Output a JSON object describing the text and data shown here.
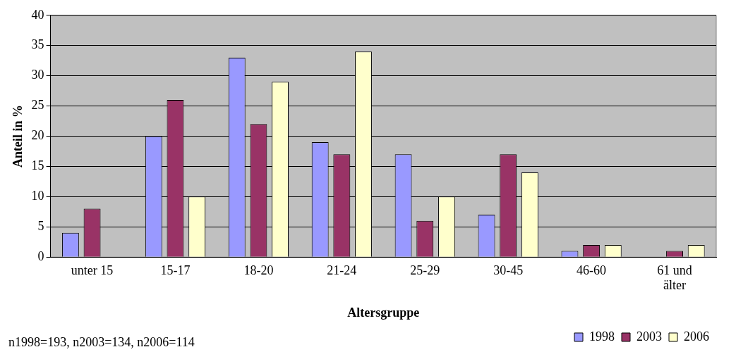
{
  "chart_data": {
    "type": "bar",
    "xlabel": "Altersgruppe",
    "ylabel": "Anteil in %",
    "categories": [
      "unter 15",
      "15-17",
      "18-20",
      "21-24",
      "25-29",
      "30-45",
      "46-60",
      "61 und älter"
    ],
    "series": [
      {
        "name": "1998",
        "color": "#9999ff",
        "values": [
          4,
          20,
          33,
          19,
          17,
          7,
          1,
          null
        ]
      },
      {
        "name": "2003",
        "color": "#993366",
        "values": [
          8,
          26,
          22,
          17,
          6,
          17,
          2,
          1
        ]
      },
      {
        "name": "2006",
        "color": "#ffffcc",
        "values": [
          null,
          10,
          29,
          34,
          10,
          14,
          2,
          2
        ]
      }
    ],
    "ylim": [
      0,
      40
    ],
    "yticks": [
      0,
      5,
      10,
      15,
      20,
      25,
      30,
      35,
      40
    ],
    "grid": "y",
    "legend": "bottom right",
    "annotations": [
      "n1998=193, n2003=134, n2006=114"
    ]
  }
}
